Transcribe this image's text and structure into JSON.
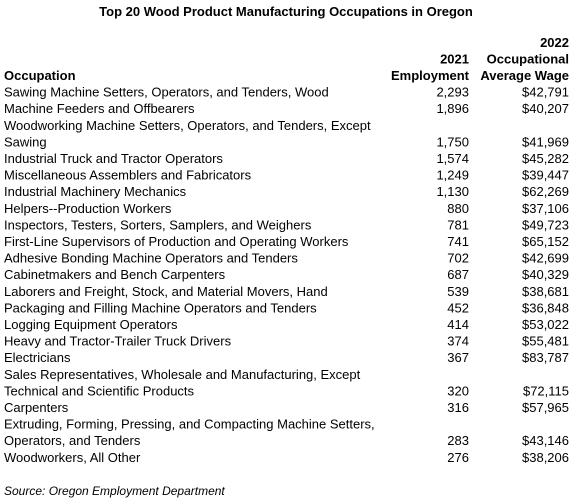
{
  "title": "Top 20 Wood Product Manufacturing Occupations in Oregon",
  "table": {
    "columns": [
      [
        "Occupation"
      ],
      [
        "2021",
        "Employment"
      ],
      [
        "2022",
        "Occupational",
        "Average Wage"
      ]
    ],
    "rows": [
      {
        "occupation": [
          "Sawing Machine Setters, Operators, and Tenders, Wood"
        ],
        "employment": "2,293",
        "wage": "$42,791"
      },
      {
        "occupation": [
          "Machine Feeders and Offbearers"
        ],
        "employment": "1,896",
        "wage": "$40,207"
      },
      {
        "occupation": [
          "Woodworking Machine Setters, Operators, and Tenders, Except",
          "Sawing"
        ],
        "employment": "1,750",
        "wage": "$41,969"
      },
      {
        "occupation": [
          "Industrial Truck and Tractor Operators"
        ],
        "employment": "1,574",
        "wage": "$45,282"
      },
      {
        "occupation": [
          "Miscellaneous Assemblers and Fabricators"
        ],
        "employment": "1,249",
        "wage": "$39,447"
      },
      {
        "occupation": [
          "Industrial Machinery Mechanics"
        ],
        "employment": "1,130",
        "wage": "$62,269"
      },
      {
        "occupation": [
          "Helpers--Production Workers"
        ],
        "employment": "880",
        "wage": "$37,106"
      },
      {
        "occupation": [
          "Inspectors, Testers, Sorters, Samplers, and Weighers"
        ],
        "employment": "781",
        "wage": "$49,723"
      },
      {
        "occupation": [
          "First-Line Supervisors of Production and Operating Workers"
        ],
        "employment": "741",
        "wage": "$65,152"
      },
      {
        "occupation": [
          "Adhesive Bonding Machine Operators and Tenders"
        ],
        "employment": "702",
        "wage": "$42,699"
      },
      {
        "occupation": [
          "Cabinetmakers and Bench Carpenters"
        ],
        "employment": "687",
        "wage": "$40,329"
      },
      {
        "occupation": [
          "Laborers and Freight, Stock, and Material Movers, Hand"
        ],
        "employment": "539",
        "wage": "$38,681"
      },
      {
        "occupation": [
          "Packaging and Filling Machine Operators and Tenders"
        ],
        "employment": "452",
        "wage": "$36,848"
      },
      {
        "occupation": [
          "Logging Equipment Operators"
        ],
        "employment": "414",
        "wage": "$53,022"
      },
      {
        "occupation": [
          "Heavy and Tractor-Trailer Truck Drivers"
        ],
        "employment": "374",
        "wage": "$55,481"
      },
      {
        "occupation": [
          "Electricians"
        ],
        "employment": "367",
        "wage": "$83,787"
      },
      {
        "occupation": [
          "Sales Representatives, Wholesale and Manufacturing, Except",
          "Technical and Scientific Products"
        ],
        "employment": "320",
        "wage": "$72,115"
      },
      {
        "occupation": [
          "Carpenters"
        ],
        "employment": "316",
        "wage": "$57,965"
      },
      {
        "occupation": [
          "Extruding, Forming, Pressing, and Compacting Machine Setters,",
          "Operators, and Tenders"
        ],
        "employment": "283",
        "wage": "$43,146"
      },
      {
        "occupation": [
          "Woodworkers, All Other"
        ],
        "employment": "276",
        "wage": "$38,206"
      }
    ]
  },
  "source": "Source: Oregon Employment Department"
}
